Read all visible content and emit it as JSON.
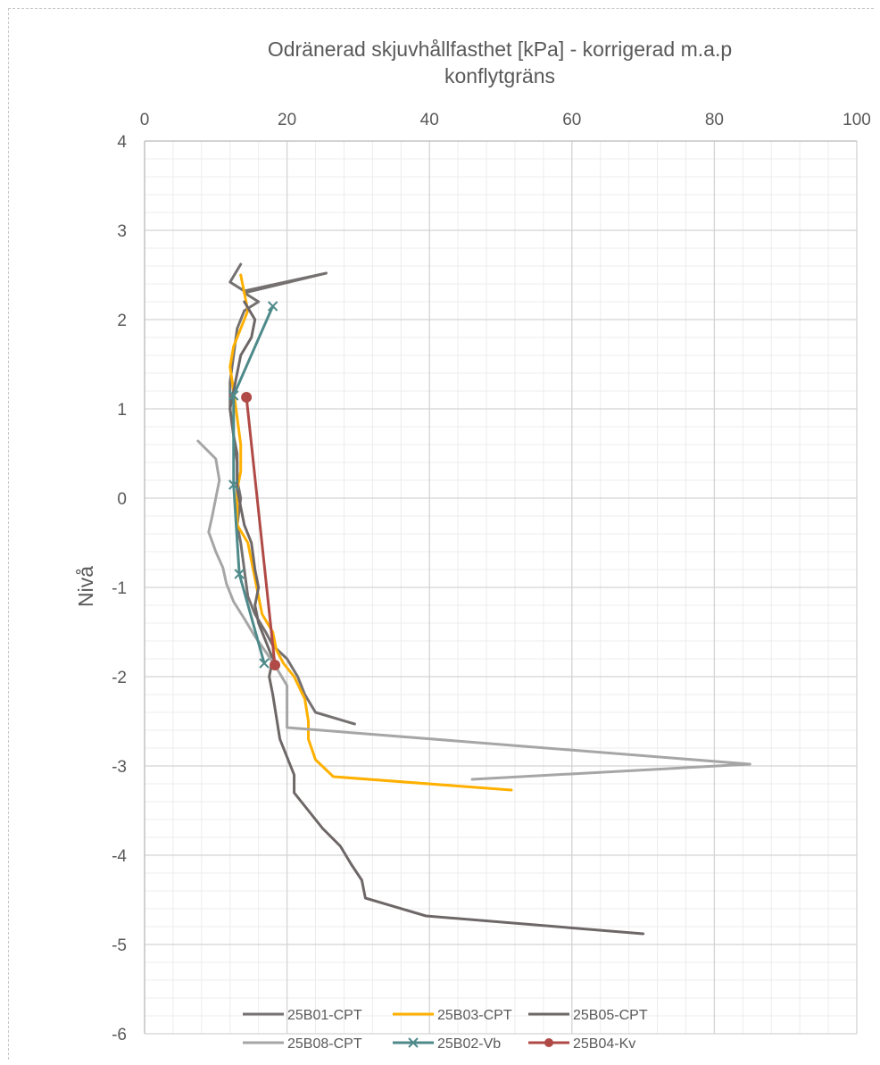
{
  "chart_data": {
    "type": "line",
    "title_lines": [
      "Odränerad skjuvhållfasthet [kPa] - korrigerad m.a.p",
      "konflytgräns"
    ],
    "xlabel": "",
    "ylabel": "Nivå",
    "xlim": [
      0,
      100
    ],
    "ylim": [
      -6,
      4
    ],
    "x_axis_position": "top",
    "x_ticks": [
      0,
      20,
      40,
      60,
      80,
      100
    ],
    "y_ticks": [
      4,
      3,
      2,
      1,
      0,
      -1,
      -2,
      -3,
      -4,
      -5,
      -6
    ],
    "x_tick_labels": [
      "0",
      "20",
      "40",
      "60",
      "80",
      "100"
    ],
    "y_tick_labels": [
      "4",
      "3",
      "2",
      "1",
      "0",
      "-1",
      "-2",
      "-3",
      "-4",
      "-5",
      "-6"
    ],
    "grid": true,
    "legend_position": "bottom",
    "series": [
      {
        "name": "25B01-CPT",
        "color": "#767171",
        "marker": "none",
        "points": [
          [
            13.5,
            2.62
          ],
          [
            12,
            2.42
          ],
          [
            14,
            2.32
          ],
          [
            25.5,
            2.52
          ],
          [
            14,
            2.3
          ],
          [
            16,
            2.2
          ],
          [
            14,
            2.1
          ],
          [
            13,
            1.9
          ],
          [
            12.5,
            1.6
          ],
          [
            12,
            1.3
          ],
          [
            12,
            1.0
          ],
          [
            12.5,
            0.7
          ],
          [
            13,
            0.5
          ],
          [
            13,
            0.2
          ],
          [
            13.5,
            0.0
          ],
          [
            13,
            -0.3
          ],
          [
            13.5,
            -0.5
          ],
          [
            14,
            -0.8
          ],
          [
            14.5,
            -1.1
          ],
          [
            15.5,
            -1.3
          ],
          [
            17,
            -1.5
          ],
          [
            18,
            -1.65
          ],
          [
            20,
            -1.8
          ],
          [
            21.5,
            -2.0
          ],
          [
            22.5,
            -2.2
          ],
          [
            24,
            -2.4
          ],
          [
            29.5,
            -2.53
          ]
        ]
      },
      {
        "name": "25B03-CPT",
        "color": "#ffb000",
        "marker": "none",
        "points": [
          [
            13.5,
            2.5
          ],
          [
            14,
            2.3
          ],
          [
            14.5,
            2.1
          ],
          [
            13.5,
            1.9
          ],
          [
            12.5,
            1.7
          ],
          [
            12,
            1.47
          ],
          [
            12.5,
            1.2
          ],
          [
            13,
            0.9
          ],
          [
            13.5,
            0.6
          ],
          [
            13.5,
            0.3
          ],
          [
            13,
            0.1
          ],
          [
            13,
            -0.1
          ],
          [
            13,
            -0.3
          ],
          [
            14.5,
            -0.5
          ],
          [
            15,
            -0.7
          ],
          [
            15.5,
            -0.9
          ],
          [
            16,
            -1.1
          ],
          [
            16.5,
            -1.3
          ],
          [
            18,
            -1.5
          ],
          [
            18.5,
            -1.7
          ],
          [
            19.5,
            -1.85
          ],
          [
            21,
            -2.0
          ],
          [
            22.5,
            -2.25
          ],
          [
            23,
            -2.5
          ],
          [
            23,
            -2.7
          ],
          [
            24,
            -2.93
          ],
          [
            26.5,
            -3.12
          ],
          [
            51.5,
            -3.27
          ]
        ]
      },
      {
        "name": "25B05-CPT",
        "color": "#6e6767",
        "marker": "none",
        "points": [
          [
            14,
            2.2
          ],
          [
            15.5,
            2.0
          ],
          [
            15,
            1.8
          ],
          [
            13.5,
            1.6
          ],
          [
            13,
            1.4
          ],
          [
            12.5,
            1.2
          ],
          [
            12,
            1.0
          ],
          [
            12.5,
            0.7
          ],
          [
            13,
            0.4
          ],
          [
            13,
            0.1
          ],
          [
            13.5,
            -0.1
          ],
          [
            14,
            -0.3
          ],
          [
            15,
            -0.5
          ],
          [
            15.5,
            -0.8
          ],
          [
            16,
            -1.0
          ],
          [
            15.5,
            -1.2
          ],
          [
            16,
            -1.4
          ],
          [
            17,
            -1.6
          ],
          [
            18,
            -1.8
          ],
          [
            17.5,
            -2.0
          ],
          [
            18,
            -2.2
          ],
          [
            18.5,
            -2.45
          ],
          [
            19,
            -2.7
          ],
          [
            20,
            -2.9
          ],
          [
            21,
            -3.1
          ],
          [
            21,
            -3.3
          ],
          [
            23,
            -3.5
          ],
          [
            25,
            -3.7
          ],
          [
            27.5,
            -3.9
          ],
          [
            29,
            -4.1
          ],
          [
            30.5,
            -4.28
          ],
          [
            31,
            -4.48
          ],
          [
            39.5,
            -4.68
          ],
          [
            70,
            -4.88
          ]
        ]
      },
      {
        "name": "25B08-CPT",
        "color": "#a6a6a6",
        "marker": "none",
        "points": [
          [
            7.5,
            0.64
          ],
          [
            10,
            0.44
          ],
          [
            10.5,
            0.2
          ],
          [
            10,
            0.0
          ],
          [
            9.5,
            -0.2
          ],
          [
            9,
            -0.38
          ],
          [
            10,
            -0.6
          ],
          [
            11,
            -0.78
          ],
          [
            11.5,
            -0.96
          ],
          [
            12.5,
            -1.16
          ],
          [
            14,
            -1.35
          ],
          [
            15.5,
            -1.55
          ],
          [
            17,
            -1.72
          ],
          [
            18.5,
            -1.9
          ],
          [
            20,
            -2.1
          ],
          [
            20,
            -2.35
          ],
          [
            20,
            -2.57
          ],
          [
            85,
            -2.98
          ],
          [
            46,
            -3.15
          ]
        ]
      },
      {
        "name": "25B02-Vb",
        "color": "#4f8a8b",
        "marker": "x",
        "points": [
          [
            18,
            2.15
          ],
          [
            12.5,
            1.15
          ],
          [
            12.5,
            0.15
          ],
          [
            13.3,
            -0.85
          ],
          [
            16.8,
            -1.85
          ]
        ]
      },
      {
        "name": "25B04-Kv",
        "color": "#b04a46",
        "marker": "circle",
        "points": [
          [
            14.3,
            1.13
          ],
          [
            18.3,
            -1.87
          ]
        ]
      }
    ],
    "legend_rows": [
      [
        "25B01-CPT",
        "25B03-CPT",
        "25B05-CPT"
      ],
      [
        "25B08-CPT",
        "25B02-Vb",
        "25B04-Kv"
      ]
    ]
  }
}
